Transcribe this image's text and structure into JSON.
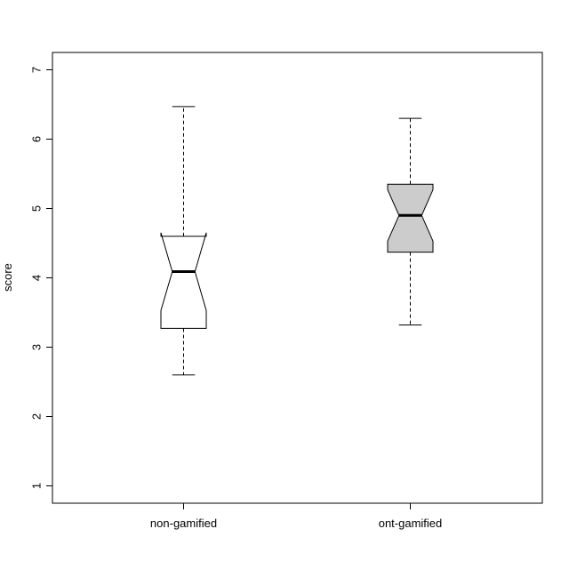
{
  "chart_data": {
    "type": "box",
    "notched": true,
    "title": "",
    "xlabel": "",
    "ylabel": "score",
    "ylim": [
      0.75,
      7.25
    ],
    "yticks": [
      1,
      2,
      3,
      4,
      5,
      6,
      7
    ],
    "grid": false,
    "categories": [
      "non-gamified",
      "ont-gamified"
    ],
    "boxes": [
      {
        "name": "non-gamified",
        "whisker_low": 2.6,
        "q1": 3.27,
        "median": 4.09,
        "q3": 4.6,
        "whisker_high": 6.47,
        "notch_low": 3.53,
        "notch_high": 4.65,
        "fill": "#ffffff"
      },
      {
        "name": "ont-gamified",
        "whisker_low": 3.32,
        "q1": 4.37,
        "median": 4.9,
        "q3": 5.35,
        "whisker_high": 6.3,
        "notch_low": 4.53,
        "notch_high": 5.27,
        "fill": "#cccccc"
      }
    ]
  }
}
